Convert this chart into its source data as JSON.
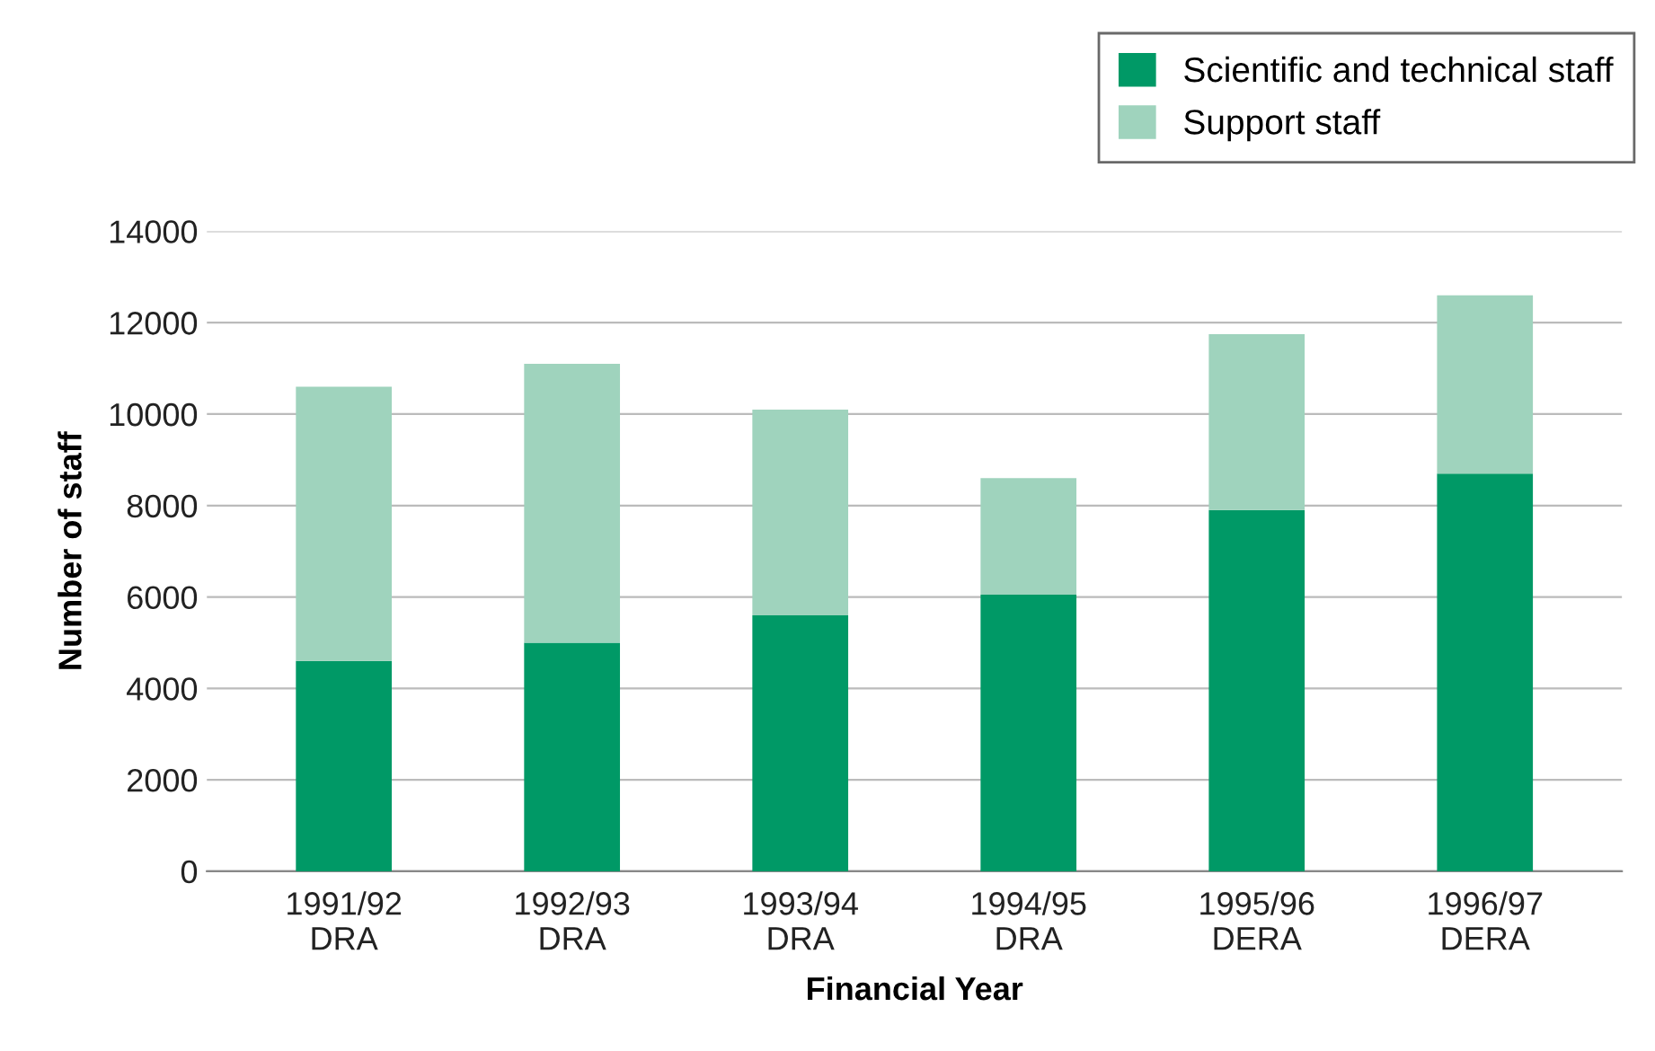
{
  "chart_data": {
    "type": "bar",
    "stacked": true,
    "xlabel": "Financial Year",
    "ylabel": "Number of staff",
    "categories": [
      "1991/92\nDRA",
      "1992/93\nDRA",
      "1993/94\nDRA",
      "1994/95\nDRA",
      "1995/96\nDERA",
      "1996/97\nDERA"
    ],
    "series": [
      {
        "name": "Scientific and technical staff",
        "color": "#009966",
        "values": [
          4600,
          5000,
          5600,
          6050,
          7900,
          8700
        ]
      },
      {
        "name": "Support staff",
        "color": "#9fd3bd",
        "values": [
          6000,
          6100,
          4500,
          2550,
          3850,
          3900
        ]
      }
    ],
    "ylim": [
      0,
      14000
    ],
    "yticks": [
      0,
      2000,
      4000,
      6000,
      8000,
      10000,
      12000,
      14000
    ],
    "grid": "y",
    "legend": "top right"
  }
}
